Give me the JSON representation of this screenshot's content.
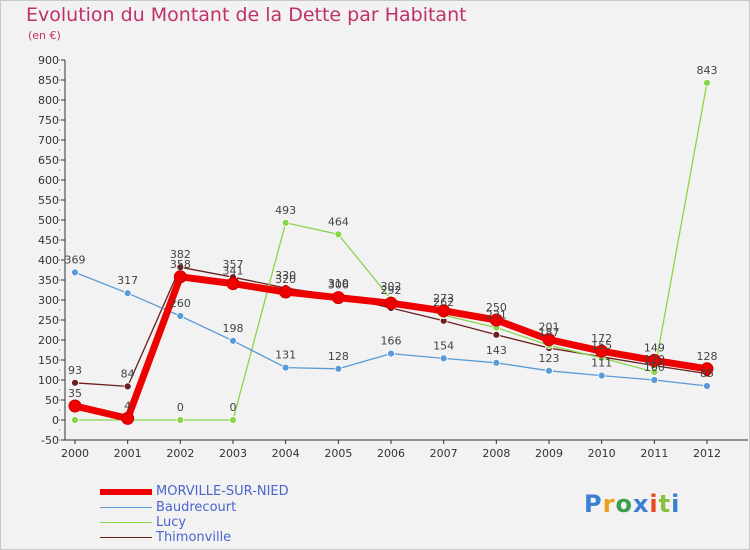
{
  "title": "Evolution du Montant de la Dette par Habitant",
  "subtitle": "(en €)",
  "logo": "Proxiti",
  "chart_data": {
    "type": "line",
    "title": "Evolution du Montant de la Dette par Habitant",
    "ylabel": "(en €)",
    "xlabel": "",
    "ylim": [
      -50,
      900
    ],
    "yticks": [
      900,
      850,
      800,
      750,
      700,
      650,
      600,
      550,
      500,
      450,
      400,
      350,
      300,
      250,
      200,
      150,
      100,
      50,
      0,
      -50
    ],
    "x": [
      "2000",
      "2001",
      "2002",
      "2003",
      "2004",
      "2005",
      "2006",
      "2007",
      "2008",
      "2009",
      "2010",
      "2011",
      "2012"
    ],
    "series": [
      {
        "name": "Thimonville",
        "color": "#6b1f1f",
        "width": 1.3,
        "values": [
          93,
          84,
          382,
          357,
          330,
          310,
          280,
          248,
          213,
          180,
          158,
          136,
          116
        ],
        "labels": [
          "93",
          "84",
          "382",
          "357",
          "330",
          "310",
          "",
          "",
          "",
          "",
          "",
          "",
          ""
        ]
      },
      {
        "name": "Lucy",
        "color": "#8ad44a",
        "width": 1.3,
        "values": [
          0,
          0,
          0,
          0,
          493,
          464,
          302,
          262,
          231,
          187,
          155,
          120,
          843
        ],
        "labels": [
          "",
          "",
          "0",
          "0",
          "493",
          "464",
          "302",
          "262",
          "231",
          "187",
          "155",
          "120",
          "843"
        ]
      },
      {
        "name": "Baudrecourt",
        "color": "#5a9ad6",
        "width": 1.3,
        "values": [
          369,
          317,
          260,
          198,
          131,
          128,
          166,
          154,
          143,
          123,
          111,
          100,
          85
        ],
        "labels": [
          "369",
          "317",
          "260",
          "198",
          "131",
          "128",
          "166",
          "154",
          "143",
          "123",
          "111",
          "100",
          "85"
        ]
      },
      {
        "name": "MORVILLE-SUR-NIED",
        "color": "#ee0000",
        "width": 7,
        "values": [
          35,
          4,
          358,
          341,
          320,
          306,
          292,
          273,
          250,
          201,
          172,
          149,
          128
        ],
        "labels": [
          "35",
          "4",
          "358",
          "341",
          "320",
          "306",
          "292",
          "273",
          "250",
          "201",
          "172",
          "149",
          "128"
        ]
      }
    ],
    "legend_order": [
      "MORVILLE-SUR-NIED",
      "Baudrecourt",
      "Lucy",
      "Thimonville"
    ],
    "grid": false,
    "legend_position": "bottom-left"
  }
}
